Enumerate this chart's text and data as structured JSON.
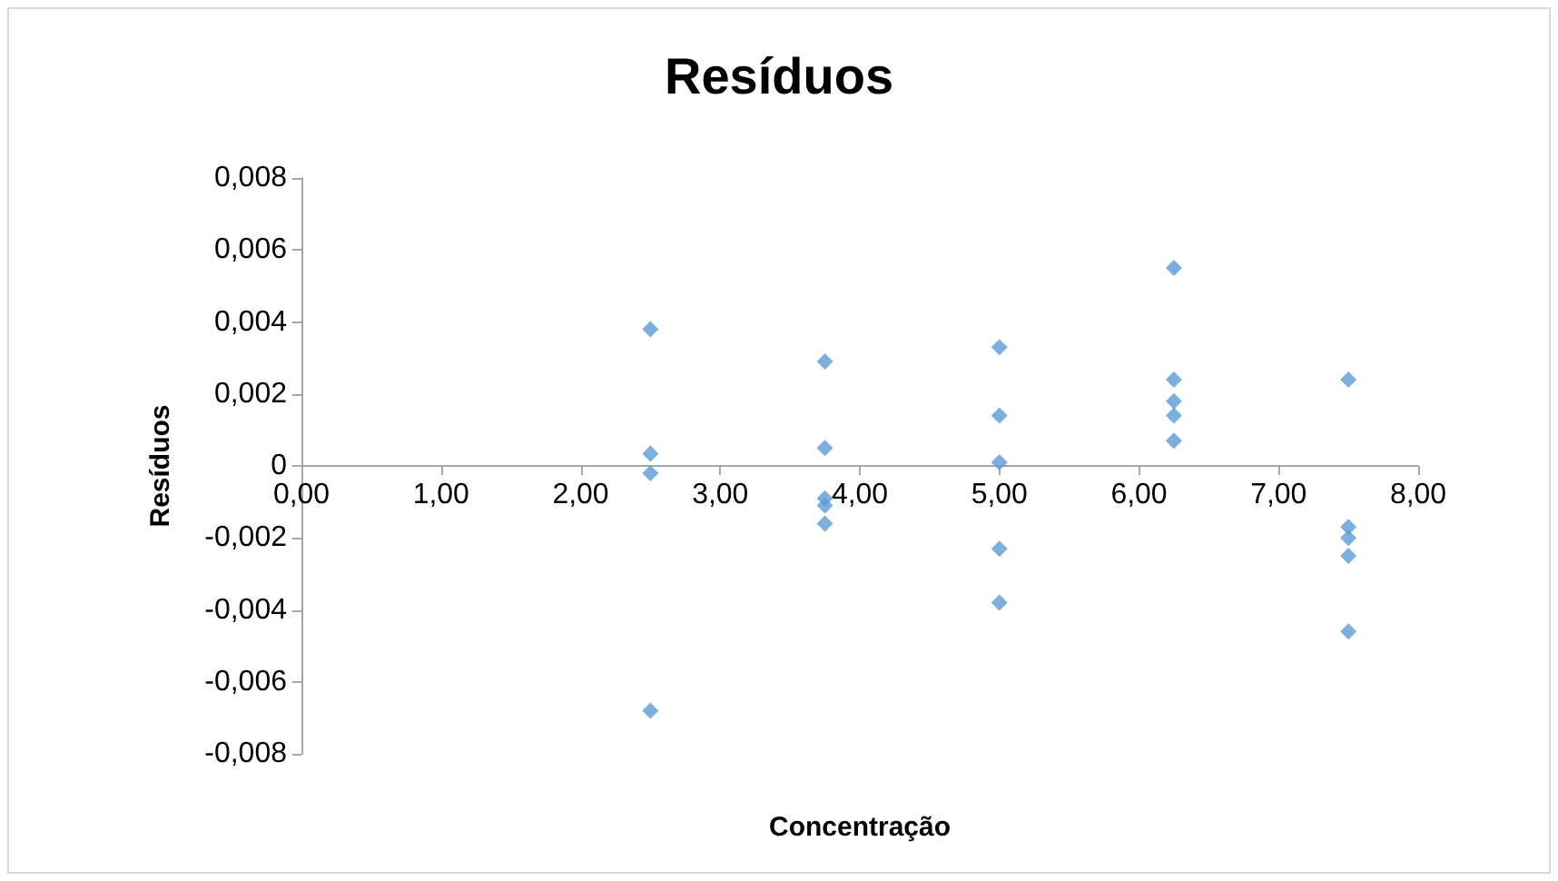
{
  "chart_data": {
    "type": "scatter",
    "title": "Resíduos",
    "xlabel": "Concentração",
    "ylabel": "Resíduos",
    "x": [
      2.5,
      2.5,
      2.5,
      2.5,
      3.75,
      3.75,
      3.75,
      3.75,
      3.75,
      5,
      5,
      5,
      5,
      5,
      6.25,
      6.25,
      6.25,
      6.25,
      6.25,
      7.5,
      7.5,
      7.5,
      7.5,
      7.5
    ],
    "series": [
      {
        "color": "#5b9bd5",
        "values": [
          0.0038,
          0.00034,
          -0.0002,
          -0.0068,
          0.0029,
          0.0005,
          -0.0009,
          -0.0011,
          -0.0016,
          0.0033,
          0.0014,
          0.0001,
          -0.0023,
          -0.0038,
          0.0055,
          0.0024,
          0.0018,
          0.0014,
          0.0007,
          0.0024,
          -0.0017,
          -0.002,
          -0.0025,
          -0.0046
        ]
      }
    ],
    "xlim": [
      0,
      8
    ],
    "xticks": [
      {
        "value": 0,
        "label": "0,00"
      },
      {
        "value": 1,
        "label": "1,00"
      },
      {
        "value": 2,
        "label": "2,00"
      },
      {
        "value": 3,
        "label": "3,00"
      },
      {
        "value": 4,
        "label": "4,00"
      },
      {
        "value": 5,
        "label": "5,00"
      },
      {
        "value": 6,
        "label": "6,00"
      },
      {
        "value": 7,
        "label": "7,00"
      },
      {
        "value": 8,
        "label": "8,00"
      }
    ],
    "ylim": [
      -0.008,
      0.008
    ],
    "yticks": [
      {
        "value": -0.008,
        "label": "-0,008"
      },
      {
        "value": -0.006,
        "label": "-0,006"
      },
      {
        "value": -0.004,
        "label": "-0,004"
      },
      {
        "value": -0.002,
        "label": "-0,002"
      },
      {
        "value": 0,
        "label": "0"
      },
      {
        "value": 0.002,
        "label": "0,002"
      },
      {
        "value": 0.004,
        "label": "0,004"
      },
      {
        "value": 0.006,
        "label": "0,006"
      },
      {
        "value": 0.008,
        "label": "0,008"
      }
    ],
    "marker": "diamond"
  }
}
